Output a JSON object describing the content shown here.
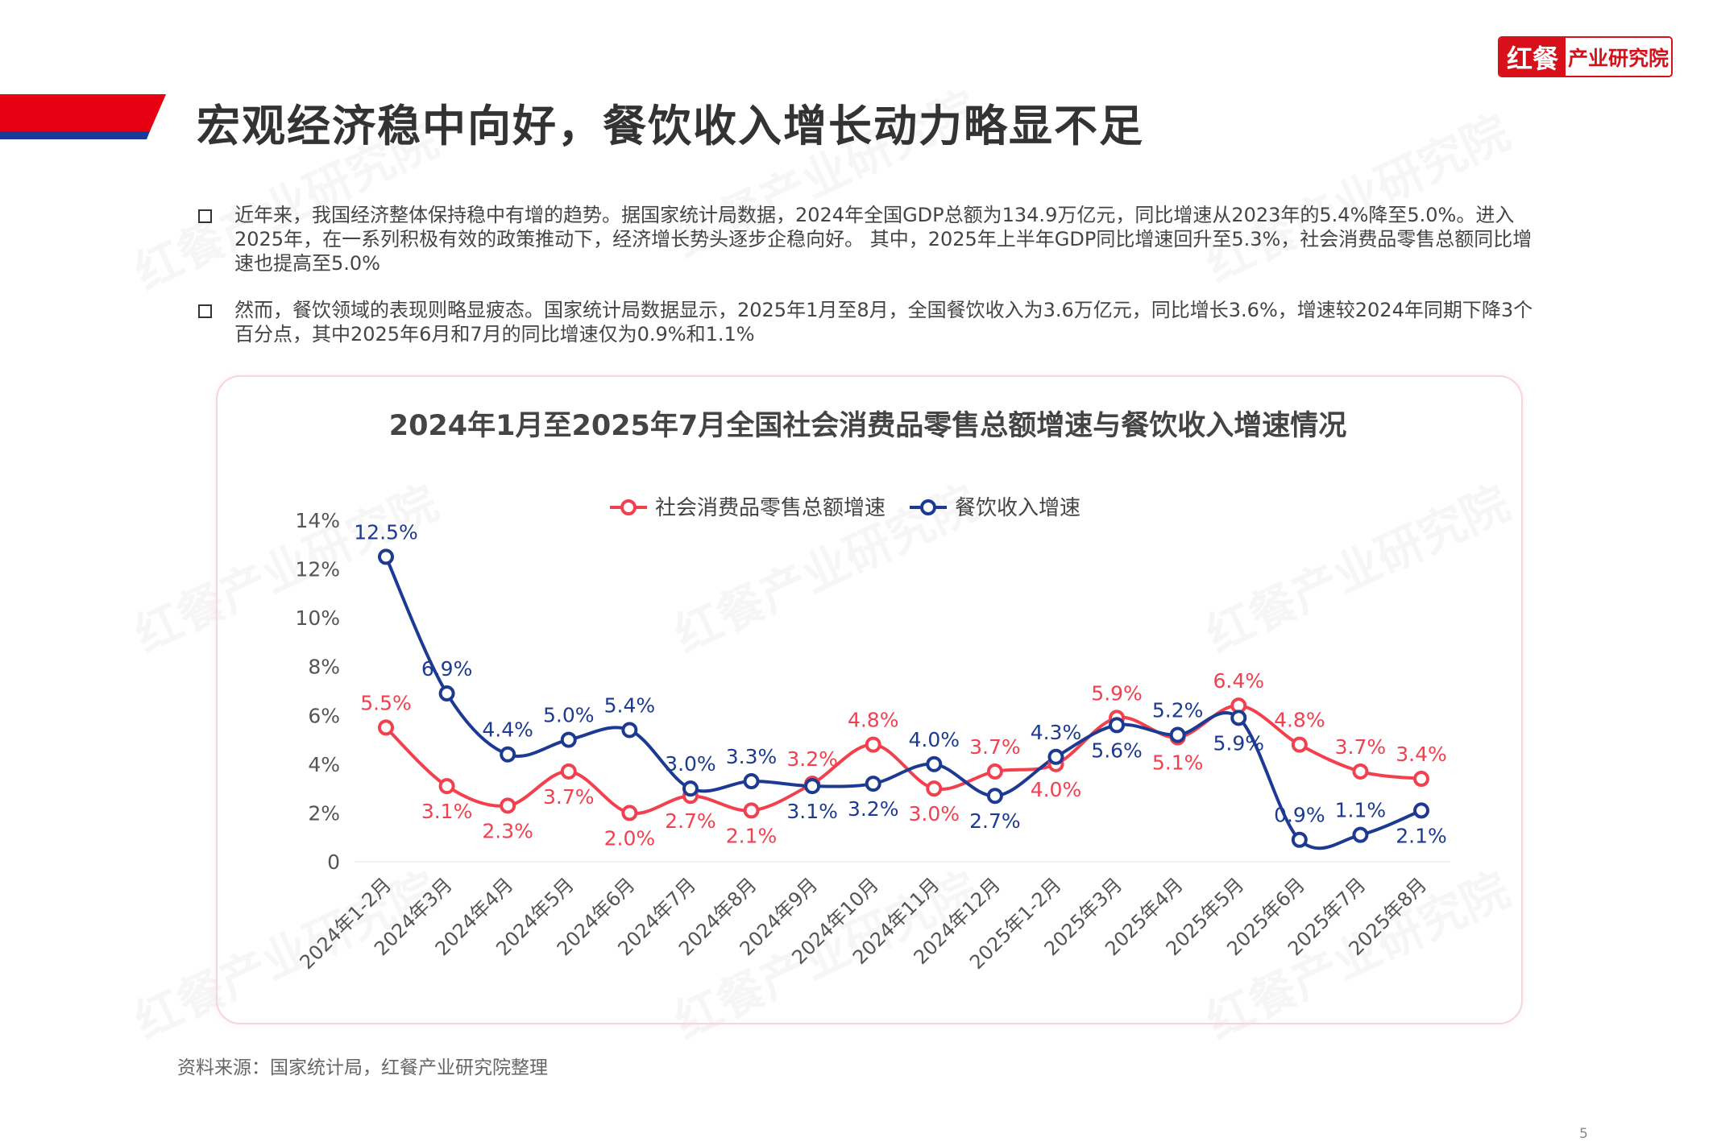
{
  "header": {
    "title": "宏观经济稳中向好，餐饮收入增长动力略显不足",
    "logo_part1": "红餐",
    "logo_part2": "产业研究院",
    "accent_red": "#e60012",
    "accent_blue": "#1a3a9a"
  },
  "bullets": [
    {
      "text": "近年来，我国经济整体保持稳中有增的趋势。据国家统计局数据，2024年全国GDP总额为134.9万亿元，同比增速从2023年的5.4%降至5.0%。进入2025年，在一系列积极有效的政策推动下，经济增长势头逐步企稳向好。 其中，2025年上半年GDP同比增速回升至5.3%，社会消费品零售总额同比增速也提高至5.0%"
    },
    {
      "text": "然而，餐饮领域的表现则略显疲态。国家统计局数据显示，2025年1月至8月，全国餐饮收入为3.6万亿元，同比增长3.6%，增速较2024年同期下降3个百分点，其中2025年6月和7月的同比增速仅为0.9%和1.1%"
    }
  ],
  "watermark": "红餐产业研究院",
  "chart_data": {
    "type": "line",
    "title": "2024年1月至2025年7月全国社会消费品零售总额增速与餐饮收入增速情况",
    "categories": [
      "2024年1-2月",
      "2024年3月",
      "2024年4月",
      "2024年5月",
      "2024年6月",
      "2024年7月",
      "2024年8月",
      "2024年9月",
      "2024年10月",
      "2024年11月",
      "2024年12月",
      "2025年1-2月",
      "2025年3月",
      "2025年4月",
      "2025年5月",
      "2025年6月",
      "2025年7月",
      "2025年8月"
    ],
    "yticks": [
      "0",
      "2%",
      "4%",
      "6%",
      "8%",
      "10%",
      "12%",
      "14%"
    ],
    "ylim": [
      0,
      14
    ],
    "legend_position": "top",
    "grid": false,
    "series": [
      {
        "name": "社会消费品零售总额增速",
        "color": "#f2404f",
        "values": [
          5.5,
          3.1,
          2.3,
          3.7,
          2.0,
          2.7,
          2.1,
          3.2,
          4.8,
          3.0,
          3.7,
          4.0,
          5.9,
          5.1,
          6.4,
          4.8,
          3.7,
          3.4
        ],
        "labels": [
          "5.5%",
          "3.1%",
          "2.3%",
          "3.7%",
          "2.0%",
          "2.7%",
          "2.1%",
          "3.2%",
          "4.8%",
          "3.0%",
          "3.7%",
          "4.0%",
          "5.9%",
          "5.1%",
          "6.4%",
          "4.8%",
          "3.7%",
          "3.4%"
        ]
      },
      {
        "name": "餐饮收入增速",
        "color": "#1c3a92",
        "values": [
          12.5,
          6.9,
          4.4,
          5.0,
          5.4,
          3.0,
          3.3,
          3.1,
          3.2,
          4.0,
          2.7,
          4.3,
          5.6,
          5.2,
          5.9,
          0.9,
          1.1,
          2.1
        ],
        "labels": [
          "12.5%",
          "6.9%",
          "4.4%",
          "5.0%",
          "5.4%",
          "3.0%",
          "3.3%",
          "3.1%",
          "3.2%",
          "4.0%",
          "2.7%",
          "4.3%",
          "5.6%",
          "5.2%",
          "5.9%",
          "0.9%",
          "1.1%",
          "2.1%"
        ]
      }
    ]
  },
  "footer": {
    "source": "资料来源：国家统计局，红餐产业研究院整理",
    "page_number": "5"
  }
}
